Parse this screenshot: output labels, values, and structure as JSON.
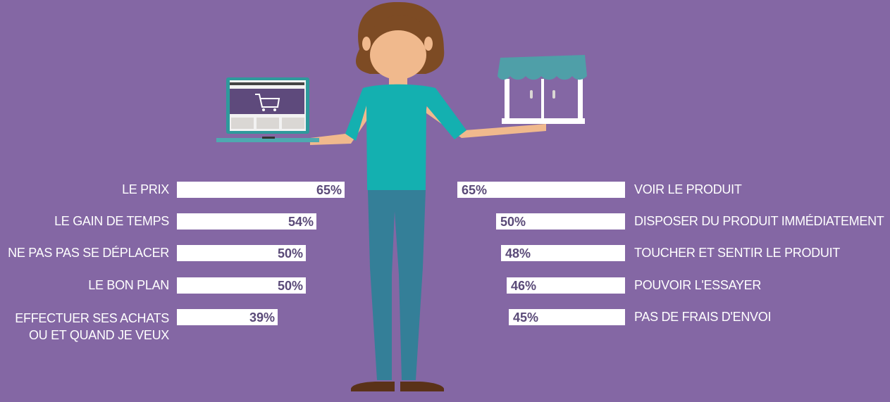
{
  "colors": {
    "background": "#8467a4",
    "bar": "#ffffff",
    "value_text": "#5a4a78",
    "label_text": "#ffffff"
  },
  "illustration": {
    "person": "woman-balancing-icon",
    "left_item": "laptop-shopping-cart-icon",
    "right_item": "shop-storefront-icon"
  },
  "chart_data": [
    {
      "type": "bar",
      "orientation": "horizontal",
      "direction": "left-to-right",
      "categories": [
        "LE PRIX",
        "LE GAIN DE TEMPS",
        "NE PAS PAS SE DÉPLACER",
        "LE BON PLAN",
        "EFFECTUER SES ACHATS OU ET QUAND JE VEUX"
      ],
      "values": [
        65,
        54,
        50,
        50,
        39
      ],
      "value_labels": [
        "65%",
        "54%",
        "50%",
        "50%",
        "39%"
      ],
      "unit": "%",
      "xlim": [
        0,
        65
      ]
    },
    {
      "type": "bar",
      "orientation": "horizontal",
      "direction": "right-to-left",
      "categories": [
        "VOIR LE PRODUIT",
        "DISPOSER DU PRODUIT  IMMÉDIATEMENT",
        "TOUCHER ET SENTIR LE  PRODUIT",
        "POUVOIR L'ESSAYER",
        "PAS DE FRAIS D'ENVOI"
      ],
      "values": [
        65,
        50,
        48,
        46,
        45
      ],
      "value_labels": [
        "65%",
        "50%",
        "48%",
        "46%",
        "45%"
      ],
      "unit": "%",
      "xlim": [
        0,
        65
      ]
    }
  ]
}
